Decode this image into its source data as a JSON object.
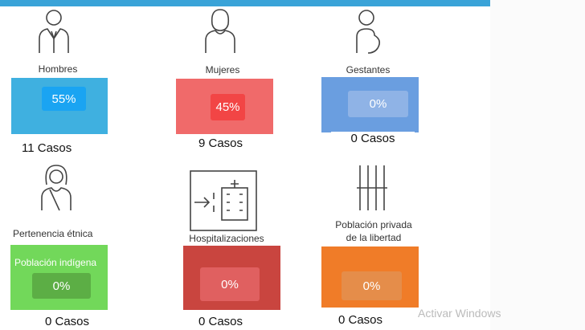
{
  "cards": [
    {
      "label": "Hombres",
      "percent": "55%",
      "cases": "11 Casos"
    },
    {
      "label": "Mujeres",
      "percent": "45%",
      "cases": "9 Casos"
    },
    {
      "label": "Gestantes",
      "percent": "0%",
      "cases": "0 Casos"
    },
    {
      "label": "Pertenencia étnica",
      "sublabel": "Población indígena",
      "percent": "0%",
      "cases": "0 Casos"
    },
    {
      "label": "Hospitalizaciones",
      "percent": "0%",
      "cases": "0 Casos"
    },
    {
      "label": "Población privada",
      "label2": "de la libertad",
      "percent": "0%",
      "cases": "0 Casos"
    }
  ],
  "watermark": "Activar Windows"
}
